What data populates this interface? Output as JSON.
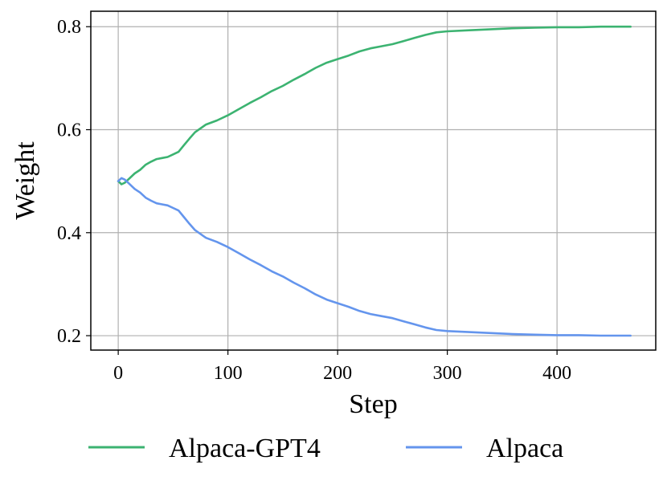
{
  "chart_data": {
    "type": "line",
    "xlabel": "Step",
    "ylabel": "Weight",
    "xlim": [
      -25,
      490
    ],
    "ylim": [
      0.172,
      0.83
    ],
    "xticks": [
      0,
      100,
      200,
      300,
      400
    ],
    "yticks": [
      0.2,
      0.4,
      0.6,
      0.8
    ],
    "xtick_labels": [
      "0",
      "100",
      "200",
      "300",
      "400"
    ],
    "ytick_labels": [
      "0.2",
      "0.4",
      "0.6",
      "0.8"
    ],
    "grid": true,
    "legend_position": "bottom, outside plot",
    "series": [
      {
        "name": "Alpaca-GPT4",
        "color": "#3cb371",
        "x": [
          0,
          3,
          6,
          10,
          15,
          20,
          25,
          30,
          35,
          40,
          45,
          50,
          55,
          60,
          65,
          70,
          80,
          90,
          100,
          110,
          120,
          130,
          140,
          150,
          160,
          170,
          180,
          190,
          200,
          210,
          220,
          230,
          240,
          250,
          260,
          270,
          280,
          290,
          300,
          320,
          340,
          360,
          380,
          400,
          420,
          440,
          467
        ],
        "y": [
          0.5,
          0.494,
          0.497,
          0.505,
          0.515,
          0.522,
          0.532,
          0.538,
          0.543,
          0.545,
          0.547,
          0.552,
          0.557,
          0.57,
          0.583,
          0.595,
          0.61,
          0.618,
          0.628,
          0.64,
          0.652,
          0.663,
          0.675,
          0.685,
          0.697,
          0.708,
          0.72,
          0.73,
          0.737,
          0.744,
          0.752,
          0.758,
          0.762,
          0.766,
          0.772,
          0.778,
          0.784,
          0.789,
          0.791,
          0.793,
          0.795,
          0.797,
          0.798,
          0.799,
          0.799,
          0.8,
          0.8
        ]
      },
      {
        "name": "Alpaca",
        "color": "#6495ed",
        "x": [
          0,
          3,
          6,
          10,
          15,
          20,
          25,
          30,
          35,
          40,
          45,
          50,
          55,
          60,
          65,
          70,
          80,
          90,
          100,
          110,
          120,
          130,
          140,
          150,
          160,
          170,
          180,
          190,
          200,
          210,
          220,
          230,
          240,
          250,
          260,
          270,
          280,
          290,
          300,
          320,
          340,
          360,
          380,
          400,
          420,
          440,
          467
        ],
        "y": [
          0.5,
          0.506,
          0.503,
          0.495,
          0.485,
          0.478,
          0.468,
          0.462,
          0.457,
          0.455,
          0.453,
          0.448,
          0.443,
          0.43,
          0.417,
          0.405,
          0.39,
          0.382,
          0.372,
          0.36,
          0.348,
          0.337,
          0.325,
          0.315,
          0.303,
          0.292,
          0.28,
          0.27,
          0.263,
          0.256,
          0.248,
          0.242,
          0.238,
          0.234,
          0.228,
          0.222,
          0.216,
          0.211,
          0.209,
          0.207,
          0.205,
          0.203,
          0.202,
          0.201,
          0.201,
          0.2,
          0.2
        ]
      }
    ]
  }
}
